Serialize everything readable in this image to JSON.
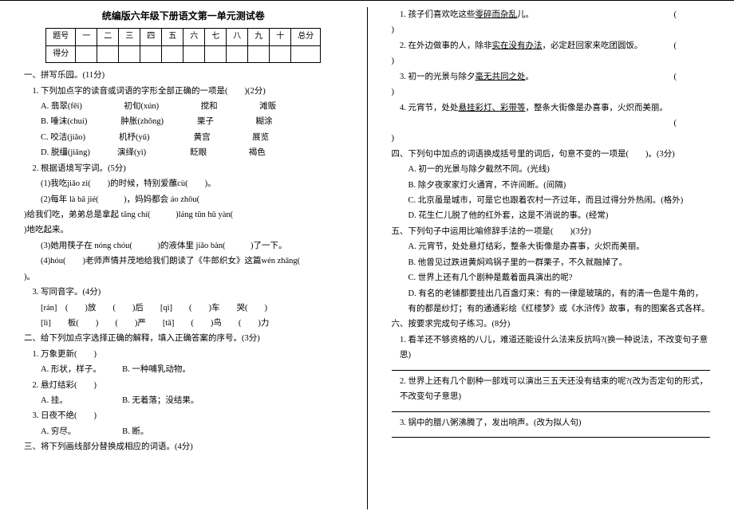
{
  "doc_title": "统编版六年级下册语文第一单元测试卷",
  "score_headers": [
    "题号",
    "一",
    "二",
    "三",
    "四",
    "五",
    "六",
    "七",
    "八",
    "九",
    "十",
    "总分"
  ],
  "score_row_label": "得分",
  "sec1": {
    "h": "一、拼写乐园。(11分)"
  },
  "q1_1": {
    "stem": "1. 下列加点字的读音或词语的字形全部正确的一项是(　　)(2分)",
    "A": "A. 翡翠(fěi)　　　　　初旬(xún)　　　　　搅和　　　　　滩贩",
    "B": "B. 唾沫(chuí)　　　　肿胀(zhǒng)　　　　栗子　　　　　糊涂",
    "C": "C. 咬洁(jiǎo)　　　　机杼(yǔ)　　　　　 黄宫　　　　　展览",
    "D": "D. 脱缰(jiāng)　　　 演绎(yì)　　　　　 眨眼　　　　　褐色"
  },
  "q1_2": {
    "stem": "2. 根据语境写字词。(5分)",
    "a": "(1)我吃jiǎo zi(　　)的时候，特别爱蘸cù(　　)。",
    "b_1": "(2)每年 là bā jié(　　　)，妈妈都会 áo zhōu(　　　",
    "b_2": ")给我们吃，弟弟总是拿起 tāng chí(　　　)láng tūn hǔ yàn(　　　　",
    "b_3": ")地吃起来。",
    "c": "(3)她用筷子在 nóng chóu(　　　)的液体里 jiǎo bàn(　　　)了一下。",
    "d_1": "(4)hóu(　　)老师声情并茂地给我们朗读了《牛郎织女》这篇wén zhāng(　　　",
    "d_2": ")。"
  },
  "q1_3": {
    "stem": "3. 写同音字。(4分)",
    "row1": "[rán]　(　　)放　　(　　)后　　[qì]　　(　　)车　　哭(　　)",
    "row2": "[lì]　　板(　　)　　(　　)严　　[tā]　　(　　)鸟　　(　　)力"
  },
  "sec2": {
    "h": "二、给下列加点字选择正确的解释，填入正确答案的序号。(3分)"
  },
  "q2_1": {
    "stem": "1. 万象更新(　　)",
    "opt": "A. 形状，样子。　　　B. 一种哺乳动物。"
  },
  "q2_2": {
    "stem": "2. 悬灯结彩(　　)",
    "opt": "A. 挂。　　　　　　　B. 无着落；没结果。"
  },
  "q2_3": {
    "stem": "3. 日夜不绝(　　)",
    "opt": "A. 穷尽。　　　　　　B. 断。"
  },
  "sec3": {
    "h": "三、将下列画线部分替换成相应的词语。(4分)"
  },
  "q3_1": "1. 孩子们喜欢吃这些零碎而杂乱儿。",
  "q3_1_u": "零碎而杂乱",
  "q3_2": "2. 在外边做事的人，除非实在没有办法，必定赶回家来吃团圆饭。",
  "q3_2_u": "实在没有办法",
  "q3_3": "3. 初一的光景与除夕毫无共同之处。",
  "q3_3_u": "毫无共同之处",
  "q3_4": "4. 元宵节，处处悬挂彩灯、彩带等，整条大街像是办喜事，火炽而美丽。",
  "q3_4_u": "悬挂彩灯、彩带等",
  "sec4": {
    "h": "四、下列句中加点的词语换成括号里的词后，句意不变的一项是(　　)。(3分)",
    "A": "A. 初一的光景与除夕截然不同。(光线)",
    "B": "B. 除夕夜家家灯火通宵，不许间断。(间隔)",
    "C": "C. 北京虽是城市，可是它也跟着农村一齐过年，而且过得分外热闹。(格外)",
    "D": "D. 花生仁儿脱了他的红外套，这是不消说的事。(经常)"
  },
  "sec5": {
    "h": "五、下列句子中运用比喻修辞手法的一项是(　　)(3分)",
    "A": "A. 元宵节，处处悬灯结彩，整条大街像是办喜事，火炽而美丽。",
    "B": "B. 他曾见过跌进黄焖鸡锅子里的一群栗子，不久就融掉了。",
    "C": "C. 世界上还有几个剧种是戴着面具演出的呢?",
    "D": "D. 有名的老铺都要挂出几百盏灯来：有的一律是玻璃的，有的清一色是牛角的，有的都是纱灯；有的通通彩绘《红楼梦》或《水浒传》故事，有的图案各式各样。"
  },
  "sec6": {
    "h": "六、按要求完成句子练习。(8分)",
    "q1": "1. 看羊还不够资格的八儿，难道还能设什么法来反抗吗?(换一种说法，不改变句子意思)",
    "q2": "2. 世界上还有几个剧种一部戏可以演出三五天还没有结束的呢?(改为否定句的形式，不改变句子意思)",
    "q3": "3. 锅中的腊八粥沸腾了，发出响声。(改为拟人句)"
  }
}
